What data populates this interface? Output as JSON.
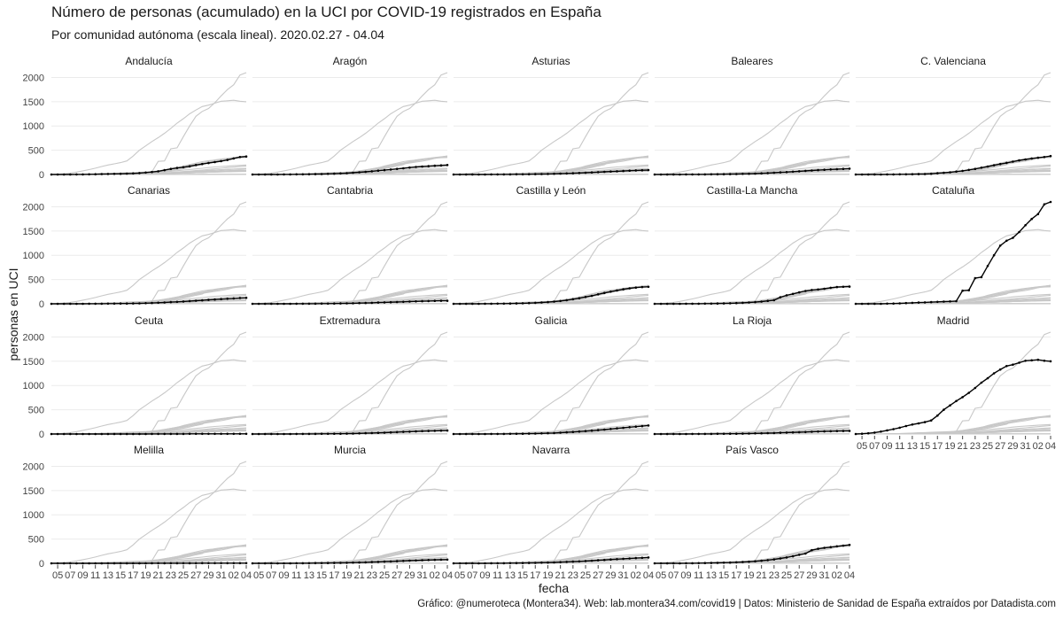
{
  "title": "Número de personas (acumulado) en la UCI por COVID-19 registrados en España",
  "subtitle": "Por comunidad autónoma (escala lineal). 2020.02.27 - 04.04",
  "caption": "Gráfico: @numeroteca (Montera34). Web: lab.montera34.com/covid19 | Datos: Ministerio de Sanidad de España extraídos por Datadista.com",
  "chart_data": {
    "type": "line",
    "xlabel": "fecha",
    "ylabel": "personas en UCI",
    "ylim": [
      0,
      2100
    ],
    "y_ticks": [
      0,
      500,
      1000,
      1500,
      2000
    ],
    "x_tick_labels": [
      "05",
      "07",
      "09",
      "11",
      "13",
      "15",
      "17",
      "19",
      "21",
      "23",
      "25",
      "27",
      "29",
      "31",
      "02",
      "04"
    ],
    "x": [
      "03-04",
      "03-05",
      "03-06",
      "03-07",
      "03-08",
      "03-09",
      "03-10",
      "03-11",
      "03-12",
      "03-13",
      "03-14",
      "03-15",
      "03-16",
      "03-17",
      "03-18",
      "03-19",
      "03-20",
      "03-21",
      "03-22",
      "03-23",
      "03-24",
      "03-25",
      "03-26",
      "03-27",
      "03-28",
      "03-29",
      "03-30",
      "03-31",
      "04-01",
      "04-02",
      "04-03",
      "04-04"
    ],
    "grid": true,
    "legend": "none",
    "colors": {
      "highlight": "#000000",
      "background": "#c8c8c8",
      "grid": "#ebebeb"
    },
    "series": [
      {
        "name": "Andalucía",
        "values": [
          0,
          0,
          0,
          0,
          1,
          2,
          4,
          6,
          9,
          11,
          13,
          15,
          18,
          22,
          30,
          40,
          52,
          65,
          90,
          115,
          135,
          150,
          170,
          195,
          215,
          235,
          255,
          275,
          300,
          330,
          360,
          370
        ]
      },
      {
        "name": "Aragón",
        "values": [
          0,
          0,
          0,
          0,
          0,
          1,
          2,
          3,
          4,
          6,
          8,
          10,
          13,
          17,
          22,
          28,
          36,
          45,
          55,
          66,
          78,
          90,
          102,
          115,
          128,
          142,
          155,
          165,
          172,
          180,
          188,
          195
        ]
      },
      {
        "name": "Asturias",
        "values": [
          0,
          0,
          0,
          0,
          0,
          0,
          1,
          1,
          2,
          2,
          3,
          4,
          5,
          7,
          9,
          11,
          14,
          18,
          22,
          26,
          31,
          36,
          42,
          48,
          54,
          60,
          66,
          72,
          78,
          84,
          88,
          92
        ]
      },
      {
        "name": "Baleares",
        "values": [
          0,
          0,
          0,
          0,
          0,
          1,
          1,
          2,
          2,
          3,
          4,
          5,
          7,
          9,
          12,
          15,
          19,
          24,
          30,
          36,
          43,
          50,
          58,
          66,
          74,
          82,
          90,
          97,
          104,
          110,
          115,
          120
        ]
      },
      {
        "name": "C. Valenciana",
        "values": [
          0,
          0,
          0,
          0,
          0,
          1,
          2,
          3,
          4,
          5,
          7,
          9,
          15,
          25,
          35,
          45,
          60,
          75,
          95,
          115,
          140,
          165,
          190,
          215,
          240,
          265,
          290,
          310,
          330,
          345,
          360,
          380
        ]
      },
      {
        "name": "Canarias",
        "values": [
          0,
          0,
          0,
          0,
          0,
          0,
          1,
          1,
          2,
          3,
          4,
          5,
          6,
          8,
          10,
          13,
          17,
          22,
          28,
          34,
          41,
          48,
          56,
          64,
          72,
          80,
          88,
          96,
          104,
          112,
          120,
          125
        ]
      },
      {
        "name": "Cantabria",
        "values": [
          0,
          0,
          0,
          0,
          0,
          0,
          0,
          1,
          1,
          2,
          2,
          3,
          4,
          5,
          7,
          9,
          11,
          14,
          17,
          21,
          25,
          29,
          33,
          37,
          41,
          45,
          49,
          53,
          57,
          60,
          62,
          63
        ]
      },
      {
        "name": "Castilla y León",
        "values": [
          0,
          0,
          0,
          0,
          0,
          1,
          2,
          3,
          4,
          6,
          8,
          11,
          15,
          20,
          27,
          35,
          45,
          58,
          75,
          95,
          115,
          140,
          165,
          195,
          225,
          250,
          275,
          300,
          320,
          335,
          345,
          350
        ]
      },
      {
        "name": "Castilla-La Mancha",
        "values": [
          0,
          0,
          0,
          0,
          0,
          1,
          1,
          2,
          3,
          4,
          6,
          8,
          11,
          15,
          20,
          27,
          35,
          45,
          60,
          75,
          135,
          175,
          205,
          235,
          265,
          285,
          295,
          310,
          330,
          345,
          350,
          355
        ]
      },
      {
        "name": "Cataluña",
        "values": [
          0,
          0,
          0,
          0,
          0,
          3,
          6,
          10,
          15,
          20,
          25,
          30,
          35,
          40,
          45,
          50,
          55,
          270,
          280,
          530,
          550,
          780,
          1000,
          1200,
          1300,
          1360,
          1480,
          1620,
          1750,
          1850,
          2050,
          2100
        ]
      },
      {
        "name": "Ceuta",
        "values": [
          0,
          0,
          0,
          0,
          0,
          0,
          0,
          0,
          0,
          0,
          0,
          0,
          0,
          0,
          0,
          0,
          1,
          1,
          1,
          2,
          2,
          2,
          3,
          3,
          3,
          3,
          4,
          4,
          4,
          4,
          4,
          4
        ]
      },
      {
        "name": "Extremadura",
        "values": [
          0,
          0,
          0,
          0,
          0,
          0,
          0,
          1,
          1,
          2,
          2,
          3,
          4,
          5,
          6,
          8,
          10,
          13,
          16,
          20,
          24,
          28,
          33,
          38,
          43,
          48,
          53,
          58,
          62,
          66,
          69,
          72
        ]
      },
      {
        "name": "Galicia",
        "values": [
          0,
          0,
          0,
          0,
          0,
          0,
          1,
          1,
          2,
          3,
          4,
          5,
          7,
          9,
          12,
          16,
          21,
          27,
          34,
          42,
          51,
          60,
          70,
          81,
          92,
          104,
          116,
          128,
          140,
          152,
          163,
          175
        ]
      },
      {
        "name": "La Rioja",
        "values": [
          0,
          0,
          0,
          0,
          0,
          0,
          1,
          1,
          2,
          2,
          3,
          4,
          5,
          6,
          8,
          10,
          12,
          15,
          18,
          21,
          25,
          29,
          33,
          37,
          41,
          45,
          49,
          53,
          57,
          60,
          62,
          64
        ]
      },
      {
        "name": "Madrid",
        "values": [
          0,
          5,
          15,
          30,
          50,
          75,
          100,
          130,
          165,
          195,
          220,
          245,
          280,
          380,
          500,
          590,
          680,
          760,
          850,
          950,
          1060,
          1150,
          1250,
          1330,
          1400,
          1430,
          1470,
          1510,
          1520,
          1530,
          1510,
          1500
        ]
      },
      {
        "name": "Melilla",
        "values": [
          0,
          0,
          0,
          0,
          0,
          0,
          0,
          0,
          0,
          0,
          0,
          0,
          0,
          0,
          0,
          0,
          1,
          1,
          1,
          1,
          2,
          2,
          2,
          2,
          3,
          3,
          3,
          3,
          3,
          3,
          3,
          3
        ]
      },
      {
        "name": "Murcia",
        "values": [
          0,
          0,
          0,
          0,
          0,
          0,
          0,
          1,
          1,
          2,
          3,
          4,
          5,
          7,
          9,
          11,
          14,
          17,
          21,
          25,
          29,
          34,
          39,
          44,
          49,
          54,
          59,
          63,
          67,
          71,
          74,
          77
        ]
      },
      {
        "name": "Navarra",
        "values": [
          0,
          0,
          0,
          0,
          0,
          0,
          1,
          1,
          2,
          3,
          4,
          5,
          7,
          9,
          12,
          15,
          19,
          24,
          29,
          35,
          41,
          48,
          55,
          62,
          70,
          78,
          86,
          94,
          101,
          108,
          114,
          120
        ]
      },
      {
        "name": "País Vasco",
        "values": [
          0,
          0,
          0,
          0,
          0,
          1,
          2,
          3,
          5,
          7,
          9,
          12,
          15,
          20,
          26,
          33,
          42,
          53,
          66,
          80,
          100,
          120,
          145,
          175,
          200,
          270,
          300,
          320,
          335,
          350,
          365,
          380
        ]
      }
    ]
  }
}
